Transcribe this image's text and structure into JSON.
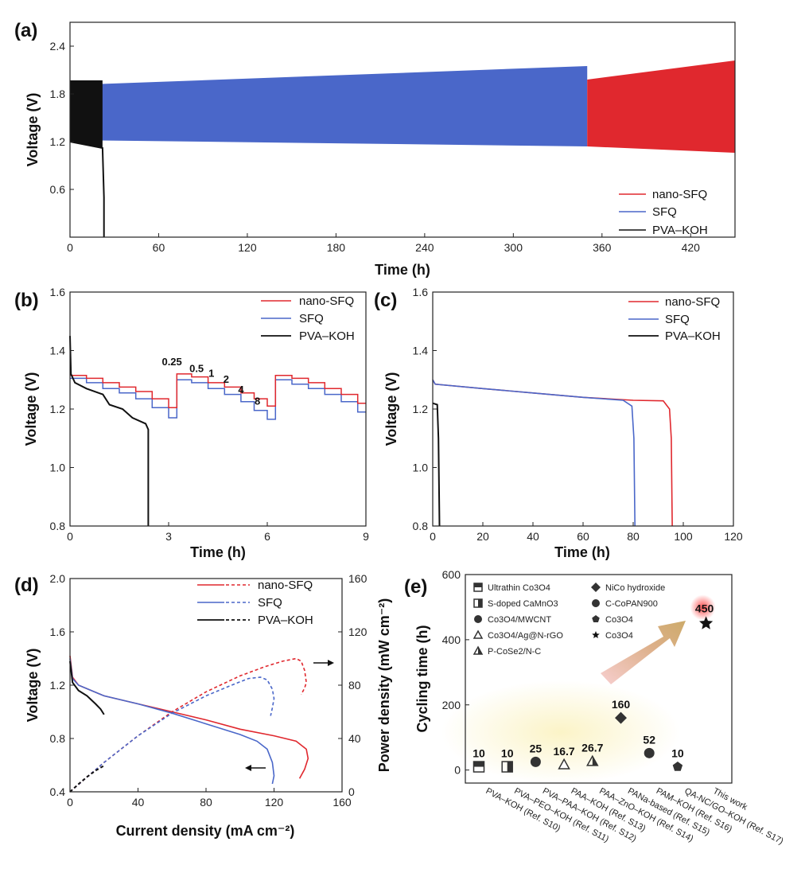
{
  "colors": {
    "nano": "#e0282e",
    "sfq": "#4a67c9",
    "pva": "#111111",
    "starHalo": "#ff6b6b"
  },
  "chart_data": [
    {
      "id": "a",
      "panel_label": "(a)",
      "type": "line",
      "xlabel": "Time (h)",
      "ylabel": "Voltage (V)",
      "xlim": [
        0,
        450
      ],
      "ylim": [
        0,
        2.7
      ],
      "xticks": [
        0,
        60,
        120,
        180,
        240,
        300,
        360,
        420
      ],
      "yticks": [
        0.6,
        1.2,
        1.8,
        2.4
      ],
      "legend": [
        "nano-SFQ",
        "SFQ",
        "PVA–KOH"
      ],
      "series": [
        {
          "name": "PVA–KOH",
          "key": "pva",
          "t_end": 22,
          "charge_v": 1.97,
          "discharge_v_start": 1.2,
          "discharge_v_end": 1.12,
          "failure_at": 23
        },
        {
          "name": "SFQ",
          "key": "sfq",
          "t_end": 350,
          "charge_v_start": 1.91,
          "charge_v_end": 2.15,
          "discharge_v_start": 1.22,
          "discharge_v_end": 1.14
        },
        {
          "name": "nano-SFQ",
          "key": "nano",
          "t_start": 350,
          "t_end": 450,
          "charge_v_start": 1.98,
          "charge_v_end": 2.22,
          "discharge_v_start": 1.14,
          "discharge_v_end": 1.06
        }
      ]
    },
    {
      "id": "b",
      "panel_label": "(b)",
      "type": "line",
      "xlabel": "Time (h)",
      "ylabel": "Voltage (V)",
      "xlim": [
        0,
        9
      ],
      "ylim": [
        0.8,
        1.6
      ],
      "xticks": [
        0,
        3,
        6,
        9
      ],
      "yticks": [
        0.8,
        1.0,
        1.2,
        1.4,
        1.6
      ],
      "legend": [
        "nano-SFQ",
        "SFQ",
        "PVA–KOH"
      ],
      "rate_labels": [
        "0.25",
        "0.5",
        "1",
        "2",
        "4",
        "8"
      ],
      "series": [
        {
          "name": "nano-SFQ",
          "key": "nano",
          "steps": [
            [
              0,
              1.315
            ],
            [
              0.5,
              1.305
            ],
            [
              1.0,
              1.29
            ],
            [
              1.5,
              1.275
            ],
            [
              2.0,
              1.26
            ],
            [
              2.5,
              1.235
            ],
            [
              3.0,
              1.205
            ],
            [
              3.25,
              1.32
            ],
            [
              3.7,
              1.31
            ],
            [
              4.2,
              1.29
            ],
            [
              4.7,
              1.275
            ],
            [
              5.2,
              1.255
            ],
            [
              5.6,
              1.235
            ],
            [
              6.0,
              1.21
            ],
            [
              6.25,
              1.315
            ],
            [
              6.75,
              1.305
            ],
            [
              7.25,
              1.29
            ],
            [
              7.75,
              1.27
            ],
            [
              8.25,
              1.25
            ],
            [
              8.75,
              1.22
            ],
            [
              9.0,
              1.195
            ]
          ]
        },
        {
          "name": "SFQ",
          "key": "sfq",
          "steps": [
            [
              0,
              1.305
            ],
            [
              0.5,
              1.29
            ],
            [
              1.0,
              1.27
            ],
            [
              1.5,
              1.255
            ],
            [
              2.0,
              1.235
            ],
            [
              2.5,
              1.205
            ],
            [
              3.0,
              1.17
            ],
            [
              3.25,
              1.3
            ],
            [
              3.7,
              1.29
            ],
            [
              4.2,
              1.27
            ],
            [
              4.7,
              1.25
            ],
            [
              5.2,
              1.225
            ],
            [
              5.6,
              1.195
            ],
            [
              6.0,
              1.165
            ],
            [
              6.25,
              1.3
            ],
            [
              6.75,
              1.285
            ],
            [
              7.25,
              1.27
            ],
            [
              7.75,
              1.25
            ],
            [
              8.25,
              1.225
            ],
            [
              8.75,
              1.19
            ],
            [
              9.0,
              1.16
            ]
          ]
        },
        {
          "name": "PVA–KOH",
          "key": "pva",
          "points": [
            [
              0,
              1.45
            ],
            [
              0.03,
              1.32
            ],
            [
              0.15,
              1.29
            ],
            [
              0.5,
              1.27
            ],
            [
              1.0,
              1.25
            ],
            [
              1.2,
              1.215
            ],
            [
              1.6,
              1.2
            ],
            [
              1.9,
              1.17
            ],
            [
              2.3,
              1.15
            ],
            [
              2.38,
              1.13
            ],
            [
              2.38,
              0.8
            ]
          ]
        }
      ]
    },
    {
      "id": "c",
      "panel_label": "(c)",
      "type": "line",
      "xlabel": "Time (h)",
      "ylabel": "Voltage (V)",
      "xlim": [
        0,
        120
      ],
      "ylim": [
        0.8,
        1.6
      ],
      "xticks": [
        0,
        20,
        40,
        60,
        80,
        100,
        120
      ],
      "yticks": [
        0.8,
        1.0,
        1.2,
        1.4,
        1.6
      ],
      "legend": [
        "nano-SFQ",
        "SFQ",
        "PVA–KOH"
      ],
      "series": [
        {
          "name": "nano-SFQ",
          "key": "nano",
          "points": [
            [
              0,
              1.3
            ],
            [
              1,
              1.285
            ],
            [
              20,
              1.27
            ],
            [
              40,
              1.255
            ],
            [
              60,
              1.24
            ],
            [
              80,
              1.23
            ],
            [
              92,
              1.228
            ],
            [
              94.5,
              1.2
            ],
            [
              95.2,
              1.1
            ],
            [
              95.6,
              0.8
            ]
          ]
        },
        {
          "name": "SFQ",
          "key": "sfq",
          "points": [
            [
              0,
              1.3
            ],
            [
              1,
              1.285
            ],
            [
              20,
              1.27
            ],
            [
              40,
              1.255
            ],
            [
              60,
              1.24
            ],
            [
              76,
              1.23
            ],
            [
              79.5,
              1.21
            ],
            [
              80.3,
              1.1
            ],
            [
              80.7,
              0.8
            ]
          ]
        },
        {
          "name": "PVA–KOH",
          "key": "pva",
          "points": [
            [
              0,
              1.22
            ],
            [
              1.8,
              1.215
            ],
            [
              2.3,
              1.1
            ],
            [
              2.7,
              0.8
            ]
          ]
        }
      ]
    },
    {
      "id": "d",
      "panel_label": "(d)",
      "type": "line",
      "xlabel": "Current density (mA cm⁻²)",
      "ylabel": "Voltage (V)",
      "y2label": "Power density (mW cm⁻²)",
      "xlim": [
        0,
        160
      ],
      "ylim": [
        0.4,
        2.0
      ],
      "y2lim": [
        0,
        160
      ],
      "xticks": [
        0,
        40,
        80,
        120,
        160
      ],
      "yticks": [
        0.4,
        0.8,
        1.2,
        1.6,
        2.0
      ],
      "y2ticks": [
        0,
        40,
        80,
        120,
        160
      ],
      "legend": [
        "nano-SFQ",
        "SFQ",
        "PVA–KOH"
      ],
      "series": [
        {
          "name": "nano-SFQ",
          "key": "nano",
          "kind": "voltage",
          "points": [
            [
              0,
              1.42
            ],
            [
              1.5,
              1.26
            ],
            [
              5,
              1.2
            ],
            [
              20,
              1.12
            ],
            [
              40,
              1.06
            ],
            [
              60,
              1.0
            ],
            [
              80,
              0.94
            ],
            [
              100,
              0.87
            ],
            [
              120,
              0.82
            ],
            [
              133,
              0.78
            ],
            [
              139,
              0.72
            ],
            [
              140,
              0.65
            ],
            [
              138,
              0.57
            ],
            [
              135,
              0.5
            ]
          ]
        },
        {
          "name": "nano-SFQ",
          "key": "nano",
          "kind": "power",
          "points": [
            [
              0,
              0
            ],
            [
              20,
              22
            ],
            [
              40,
              42
            ],
            [
              60,
              60
            ],
            [
              80,
              75
            ],
            [
              100,
              87
            ],
            [
              115,
              94
            ],
            [
              125,
              98
            ],
            [
              133,
              100
            ],
            [
              136,
              98
            ],
            [
              138,
              91
            ],
            [
              139,
              82
            ],
            [
              138,
              78
            ],
            [
              136,
              73
            ]
          ]
        },
        {
          "name": "SFQ",
          "key": "sfq",
          "kind": "voltage",
          "points": [
            [
              0,
              1.4
            ],
            [
              1.5,
              1.25
            ],
            [
              5,
              1.2
            ],
            [
              20,
              1.12
            ],
            [
              40,
              1.06
            ],
            [
              60,
              0.99
            ],
            [
              80,
              0.91
            ],
            [
              100,
              0.83
            ],
            [
              110,
              0.78
            ],
            [
              116,
              0.72
            ],
            [
              119,
              0.62
            ],
            [
              120,
              0.52
            ],
            [
              119,
              0.46
            ]
          ]
        },
        {
          "name": "SFQ",
          "key": "sfq",
          "kind": "power",
          "points": [
            [
              0,
              0
            ],
            [
              20,
              22
            ],
            [
              40,
              42
            ],
            [
              60,
              59
            ],
            [
              80,
              72
            ],
            [
              95,
              80
            ],
            [
              105,
              85
            ],
            [
              112,
              86
            ],
            [
              116,
              84
            ],
            [
              119,
              77
            ],
            [
              120,
              70
            ],
            [
              119,
              63
            ],
            [
              118,
              57
            ]
          ]
        },
        {
          "name": "PVA–KOH",
          "key": "pva",
          "kind": "voltage",
          "points": [
            [
              0,
              1.38
            ],
            [
              1.5,
              1.22
            ],
            [
              5,
              1.16
            ],
            [
              10,
              1.12
            ],
            [
              15,
              1.06
            ],
            [
              18,
              1.02
            ],
            [
              20,
              0.98
            ]
          ]
        },
        {
          "name": "PVA–KOH",
          "key": "pva",
          "kind": "power",
          "points": [
            [
              0,
              0
            ],
            [
              5,
              5.8
            ],
            [
              10,
              11.2
            ],
            [
              15,
              15.9
            ],
            [
              20,
              19.6
            ]
          ]
        }
      ]
    },
    {
      "id": "e",
      "panel_label": "(e)",
      "type": "scatter",
      "ylabel": "Cycling time (h)",
      "ylim": [
        -40,
        600
      ],
      "yticks": [
        0,
        200,
        400,
        600
      ],
      "categories": [
        "PVA–KOH (Ref. S10)",
        "PVA–PEO–KOH (Ref. S11)",
        "PVA–PAA–KOH (Ref. S12)",
        "PAA–KOH (Ref. S13)",
        "PAA–ZnO–KOH (Ref. S14)",
        "PANa-based (Ref. S15)",
        "PAM–KOH (Ref. S16)",
        "QA-NC/GO–KOH (Ref. S17)",
        "This work"
      ],
      "values": [
        10,
        10,
        25,
        16.7,
        26.7,
        160,
        52,
        10,
        450
      ],
      "value_labels": [
        "10",
        "10",
        "25",
        "16.7",
        "26.7",
        "160",
        "52",
        "10",
        "450"
      ],
      "markers": [
        "half-square-h",
        "half-square-v",
        "circle",
        "triangle",
        "half-triangle",
        "diamond",
        "circle",
        "pentagon",
        "star"
      ],
      "legend_left": [
        "Ultrathin Co3O4",
        "S-doped CaMnO3",
        "Co3O4/MWCNT",
        "Co3O4/Ag@N-rGO",
        "P-CoSe2/N-C"
      ],
      "legend_right": [
        "NiCo hydroxide",
        "C-CoPAN900",
        "Co3O4",
        "Co3O4"
      ]
    }
  ]
}
